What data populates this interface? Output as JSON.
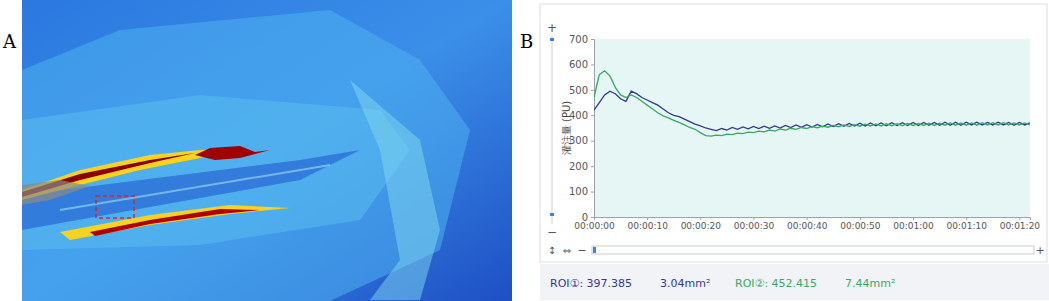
{
  "panel_labels": [
    "A",
    "B"
  ],
  "chart_data": {
    "type": "line",
    "ylabel": "灌注量 (PU)",
    "x": [
      0,
      1,
      2,
      3,
      4,
      5,
      6,
      7,
      8,
      9,
      10,
      11,
      12,
      13,
      14,
      15,
      16,
      17,
      18,
      19,
      20,
      21,
      22,
      23,
      24,
      25,
      26,
      27,
      28,
      29,
      30,
      31,
      32,
      33,
      34,
      35,
      36,
      37,
      38,
      39,
      40,
      41,
      42,
      43,
      44,
      45,
      46,
      47,
      48,
      49,
      50,
      51,
      52,
      53,
      54,
      55,
      56,
      57,
      58,
      59,
      60,
      61,
      62,
      63,
      64,
      65,
      66,
      67,
      68,
      69,
      70,
      71,
      72,
      73,
      74,
      75,
      76,
      77,
      78,
      79,
      80,
      81,
      82
    ],
    "xlim": [
      0,
      82
    ],
    "xticks": [
      {
        "value": 0,
        "label": "00:00:00"
      },
      {
        "value": 10,
        "label": "00:00:10"
      },
      {
        "value": 20,
        "label": "00:00:20"
      },
      {
        "value": 30,
        "label": "00:00:30"
      },
      {
        "value": 40,
        "label": "00:00:40"
      },
      {
        "value": 50,
        "label": "00:00:50"
      },
      {
        "value": 60,
        "label": "00:01:00"
      },
      {
        "value": 70,
        "label": "00:01:10"
      },
      {
        "value": 80,
        "label": "00:01:20"
      }
    ],
    "ylim": [
      0,
      700
    ],
    "yticks": [
      0,
      100,
      200,
      300,
      400,
      500,
      600,
      700
    ],
    "grid": false,
    "series": [
      {
        "color": "#2f3a8f",
        "values": [
          420,
          450,
          480,
          495,
          485,
          465,
          455,
          495,
          485,
          470,
          460,
          450,
          440,
          425,
          410,
          400,
          395,
          385,
          375,
          365,
          358,
          350,
          345,
          340,
          348,
          342,
          352,
          345,
          354,
          347,
          356,
          348,
          357,
          349,
          358,
          350,
          360,
          352,
          362,
          353,
          363,
          354,
          364,
          355,
          366,
          356,
          367,
          357,
          368,
          358,
          369,
          358,
          370,
          359,
          370,
          359,
          371,
          360,
          371,
          360,
          372,
          360,
          372,
          361,
          372,
          361,
          373,
          361,
          373,
          361,
          373,
          362,
          373,
          362,
          372,
          362,
          373,
          362,
          372,
          361,
          372,
          362,
          370
        ]
      },
      {
        "color": "#3aa865",
        "values": [
          470,
          560,
          575,
          555,
          510,
          480,
          470,
          480,
          470,
          455,
          440,
          425,
          410,
          398,
          390,
          380,
          372,
          362,
          352,
          345,
          332,
          320,
          318,
          322,
          320,
          326,
          324,
          330,
          328,
          334,
          332,
          338,
          335,
          342,
          338,
          346,
          342,
          349,
          345,
          352,
          348,
          355,
          351,
          357,
          353,
          360,
          355,
          362,
          356,
          363,
          357,
          365,
          358,
          366,
          358,
          367,
          359,
          367,
          359,
          368,
          360,
          368,
          360,
          369,
          360,
          369,
          361,
          370,
          361,
          370,
          361,
          370,
          361,
          371,
          362,
          371,
          362,
          371,
          362,
          370,
          362,
          370,
          362
        ]
      }
    ]
  },
  "footer": {
    "roi1": "ROI①: 397.385",
    "roi1_area": "3.04mm²",
    "roi2": "ROI②: 452.415",
    "roi2_area": "7.44mm²"
  },
  "controls": {
    "zoom_in": "+",
    "zoom_out": "−",
    "vertical": "↕",
    "horizontal": "⇔",
    "h_zoom_out": "−",
    "h_zoom_in": "+"
  }
}
